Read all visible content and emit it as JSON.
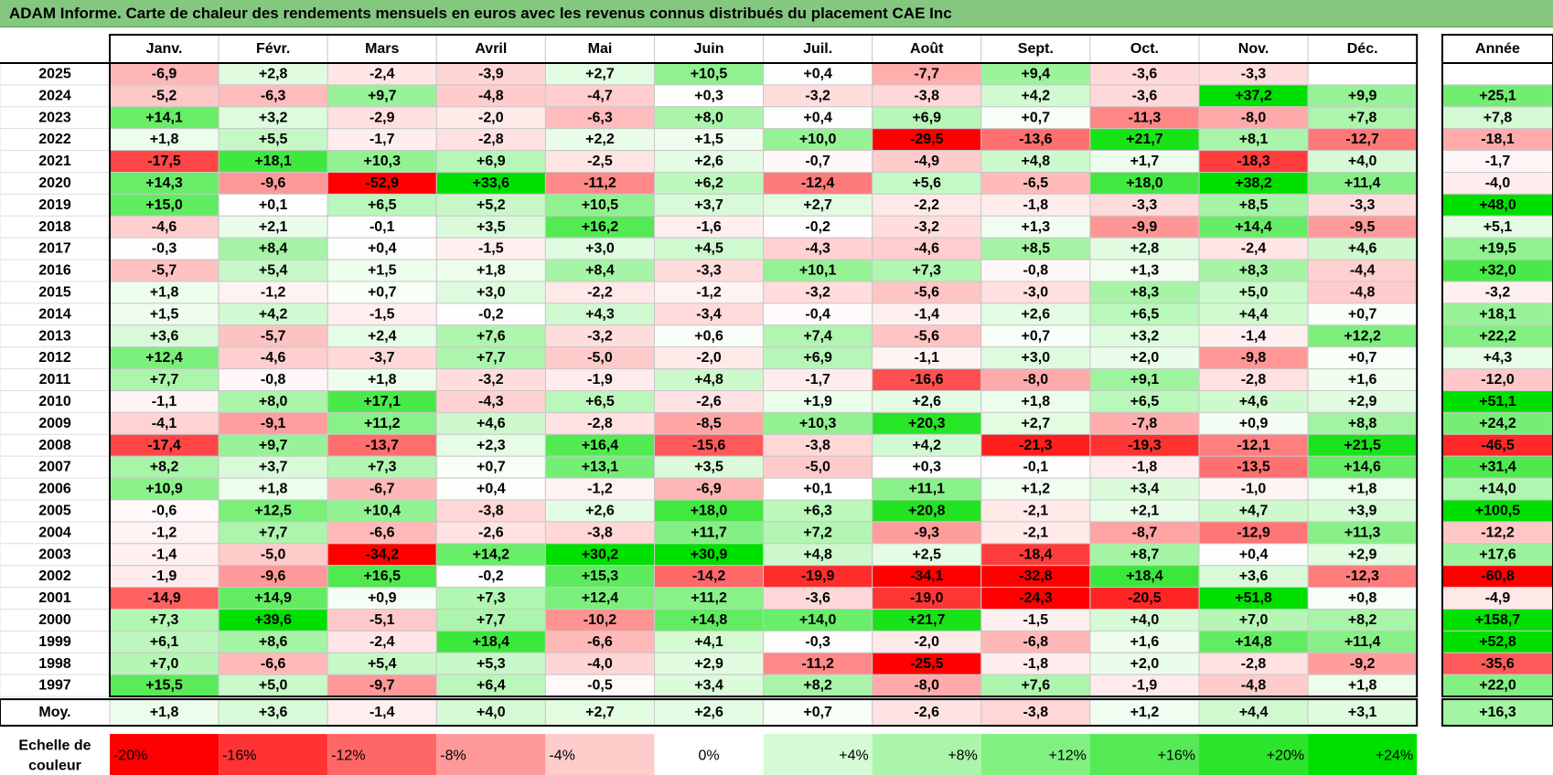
{
  "title": "ADAM Informe. Carte de chaleur des rendements mensuels en euros avec les revenus connus distribués du placement CAE Inc",
  "chart_data": {
    "type": "heatmap",
    "months": [
      "Janv.",
      "Févr.",
      "Mars",
      "Avril",
      "Mai",
      "Juin",
      "Juil.",
      "Août",
      "Sept.",
      "Oct.",
      "Nov.",
      "Déc."
    ],
    "annual_header": "Année",
    "rows": [
      {
        "year": "2025",
        "m": [
          "-6,9",
          "+2,8",
          "-2,4",
          "-3,9",
          "+2,7",
          "+10,5",
          "+0,4",
          "-7,7",
          "+9,4",
          "-3,6",
          "-3,3",
          ""
        ],
        "annual": ""
      },
      {
        "year": "2024",
        "m": [
          "-5,2",
          "-6,3",
          "+9,7",
          "-4,8",
          "-4,7",
          "+0,3",
          "-3,2",
          "-3,8",
          "+4,2",
          "-3,6",
          "+37,2",
          "+9,9"
        ],
        "annual": "+25,1"
      },
      {
        "year": "2023",
        "m": [
          "+14,1",
          "+3,2",
          "-2,9",
          "-2,0",
          "-6,3",
          "+8,0",
          "+0,4",
          "+6,9",
          "+0,7",
          "-11,3",
          "-8,0",
          "+7,8"
        ],
        "annual": "+7,8"
      },
      {
        "year": "2022",
        "m": [
          "+1,8",
          "+5,5",
          "-1,7",
          "-2,8",
          "+2,2",
          "+1,5",
          "+10,0",
          "-29,5",
          "-13,6",
          "+21,7",
          "+8,1",
          "-12,7"
        ],
        "annual": "-18,1"
      },
      {
        "year": "2021",
        "m": [
          "-17,5",
          "+18,1",
          "+10,3",
          "+6,9",
          "-2,5",
          "+2,6",
          "-0,7",
          "-4,9",
          "+4,8",
          "+1,7",
          "-18,3",
          "+4,0"
        ],
        "annual": "-1,7"
      },
      {
        "year": "2020",
        "m": [
          "+14,3",
          "-9,6",
          "-52,9",
          "+33,6",
          "-11,2",
          "+6,2",
          "-12,4",
          "+5,6",
          "-6,5",
          "+18,0",
          "+38,2",
          "+11,4"
        ],
        "annual": "-4,0"
      },
      {
        "year": "2019",
        "m": [
          "+15,0",
          "+0,1",
          "+6,5",
          "+5,2",
          "+10,5",
          "+3,7",
          "+2,7",
          "-2,2",
          "-1,8",
          "-3,3",
          "+8,5",
          "-3,3"
        ],
        "annual": "+48,0"
      },
      {
        "year": "2018",
        "m": [
          "-4,6",
          "+2,1",
          "-0,1",
          "+3,5",
          "+16,2",
          "-1,6",
          "-0,2",
          "-3,2",
          "+1,3",
          "-9,9",
          "+14,4",
          "-9,5"
        ],
        "annual": "+5,1"
      },
      {
        "year": "2017",
        "m": [
          "-0,3",
          "+8,4",
          "+0,4",
          "-1,5",
          "+3,0",
          "+4,5",
          "-4,3",
          "-4,6",
          "+8,5",
          "+2,8",
          "-2,4",
          "+4,6"
        ],
        "annual": "+19,5"
      },
      {
        "year": "2016",
        "m": [
          "-5,7",
          "+5,4",
          "+1,5",
          "+1,8",
          "+8,4",
          "-3,3",
          "+10,1",
          "+7,3",
          "-0,8",
          "+1,3",
          "+8,3",
          "-4,4"
        ],
        "annual": "+32,0"
      },
      {
        "year": "2015",
        "m": [
          "+1,8",
          "-1,2",
          "+0,7",
          "+3,0",
          "-2,2",
          "-1,2",
          "-3,2",
          "-5,6",
          "-3,0",
          "+8,3",
          "+5,0",
          "-4,8"
        ],
        "annual": "-3,2"
      },
      {
        "year": "2014",
        "m": [
          "+1,5",
          "+4,2",
          "-1,5",
          "-0,2",
          "+4,3",
          "-3,4",
          "-0,4",
          "-1,4",
          "+2,6",
          "+6,5",
          "+4,4",
          "+0,7"
        ],
        "annual": "+18,1"
      },
      {
        "year": "2013",
        "m": [
          "+3,6",
          "-5,7",
          "+2,4",
          "+7,6",
          "-3,2",
          "+0,6",
          "+7,4",
          "-5,6",
          "+0,7",
          "+3,2",
          "-1,4",
          "+12,2"
        ],
        "annual": "+22,2"
      },
      {
        "year": "2012",
        "m": [
          "+12,4",
          "-4,6",
          "-3,7",
          "+7,7",
          "-5,0",
          "-2,0",
          "+6,9",
          "-1,1",
          "+3,0",
          "+2,0",
          "-9,8",
          "+0,7"
        ],
        "annual": "+4,3"
      },
      {
        "year": "2011",
        "m": [
          "+7,7",
          "-0,8",
          "+1,8",
          "-3,2",
          "-1,9",
          "+4,8",
          "-1,7",
          "-16,6",
          "-8,0",
          "+9,1",
          "-2,8",
          "+1,6"
        ],
        "annual": "-12,0"
      },
      {
        "year": "2010",
        "m": [
          "-1,1",
          "+8,0",
          "+17,1",
          "-4,3",
          "+6,5",
          "-2,6",
          "+1,9",
          "+2,6",
          "+1,8",
          "+6,5",
          "+4,6",
          "+2,9"
        ],
        "annual": "+51,1"
      },
      {
        "year": "2009",
        "m": [
          "-4,1",
          "-9,1",
          "+11,2",
          "+4,6",
          "-2,8",
          "-8,5",
          "+10,3",
          "+20,3",
          "+2,7",
          "-7,8",
          "+0,9",
          "+8,8"
        ],
        "annual": "+24,2"
      },
      {
        "year": "2008",
        "m": [
          "-17,4",
          "+9,7",
          "-13,7",
          "+2,3",
          "+16,4",
          "-15,6",
          "-3,8",
          "+4,2",
          "-21,3",
          "-19,3",
          "-12,1",
          "+21,5"
        ],
        "annual": "-46,5"
      },
      {
        "year": "2007",
        "m": [
          "+8,2",
          "+3,7",
          "+7,3",
          "+0,7",
          "+13,1",
          "+3,5",
          "-5,0",
          "+0,3",
          "-0,1",
          "-1,8",
          "-13,5",
          "+14,6"
        ],
        "annual": "+31,4"
      },
      {
        "year": "2006",
        "m": [
          "+10,9",
          "+1,8",
          "-6,7",
          "+0,4",
          "-1,2",
          "-6,9",
          "+0,1",
          "+11,1",
          "+1,2",
          "+3,4",
          "-1,0",
          "+1,8"
        ],
        "annual": "+14,0"
      },
      {
        "year": "2005",
        "m": [
          "-0,6",
          "+12,5",
          "+10,4",
          "-3,8",
          "+2,6",
          "+18,0",
          "+6,3",
          "+20,8",
          "-2,1",
          "+2,1",
          "+4,7",
          "+3,9"
        ],
        "annual": "+100,5"
      },
      {
        "year": "2004",
        "m": [
          "-1,2",
          "+7,7",
          "-6,6",
          "-2,6",
          "-3,8",
          "+11,7",
          "+7,2",
          "-9,3",
          "-2,1",
          "-8,7",
          "-12,9",
          "+11,3"
        ],
        "annual": "-12,2"
      },
      {
        "year": "2003",
        "m": [
          "-1,4",
          "-5,0",
          "-34,2",
          "+14,2",
          "+30,2",
          "+30,9",
          "+4,8",
          "+2,5",
          "-18,4",
          "+8,7",
          "+0,4",
          "+2,9"
        ],
        "annual": "+17,6"
      },
      {
        "year": "2002",
        "m": [
          "-1,9",
          "-9,6",
          "+16,5",
          "-0,2",
          "+15,3",
          "-14,2",
          "-19,9",
          "-34,1",
          "-32,8",
          "+18,4",
          "+3,6",
          "-12,3"
        ],
        "annual": "-60,8"
      },
      {
        "year": "2001",
        "m": [
          "-14,9",
          "+14,9",
          "+0,9",
          "+7,3",
          "+12,4",
          "+11,2",
          "-3,6",
          "-19,0",
          "-24,3",
          "-20,5",
          "+51,8",
          "+0,8"
        ],
        "annual": "-4,9"
      },
      {
        "year": "2000",
        "m": [
          "+7,3",
          "+39,6",
          "-5,1",
          "+7,7",
          "-10,2",
          "+14,8",
          "+14,0",
          "+21,7",
          "-1,5",
          "+4,0",
          "+7,0",
          "+8,2"
        ],
        "annual": "+158,7"
      },
      {
        "year": "1999",
        "m": [
          "+6,1",
          "+8,6",
          "-2,4",
          "+18,4",
          "-6,6",
          "+4,1",
          "-0,3",
          "-2,0",
          "-6,8",
          "+1,6",
          "+14,8",
          "+11,4"
        ],
        "annual": "+52,8"
      },
      {
        "year": "1998",
        "m": [
          "+7,0",
          "-6,6",
          "+5,4",
          "+5,3",
          "-4,0",
          "+2,9",
          "-11,2",
          "-25,5",
          "-1,8",
          "+2,0",
          "-2,8",
          "-9,2"
        ],
        "annual": "-35,6"
      },
      {
        "year": "1997",
        "m": [
          "+15,5",
          "+5,0",
          "-9,7",
          "+6,4",
          "-0,5",
          "+3,4",
          "+8,2",
          "-8,0",
          "+7,6",
          "-1,9",
          "-4,8",
          "+1,8"
        ],
        "annual": "+22,0"
      }
    ],
    "average": {
      "label": "Moy.",
      "m": [
        "+1,8",
        "+3,6",
        "-1,4",
        "+4,0",
        "+2,7",
        "+2,6",
        "+0,7",
        "-2,6",
        "-3,8",
        "+1,2",
        "+4,4",
        "+3,1"
      ],
      "annual": "+16,3"
    },
    "legend": {
      "label_line1": "Echelle de",
      "label_line2": "couleur",
      "steps": [
        "-20%",
        "-16%",
        "-12%",
        "-8%",
        "-4%",
        "0%",
        "+4%",
        "+8%",
        "+12%",
        "+16%",
        "+20%",
        "+24%"
      ]
    },
    "colors": {
      "negative_max": "#ff0000",
      "neutral": "#ffffff",
      "positive_max": "#00e000",
      "title_background": "#84c77f"
    }
  }
}
